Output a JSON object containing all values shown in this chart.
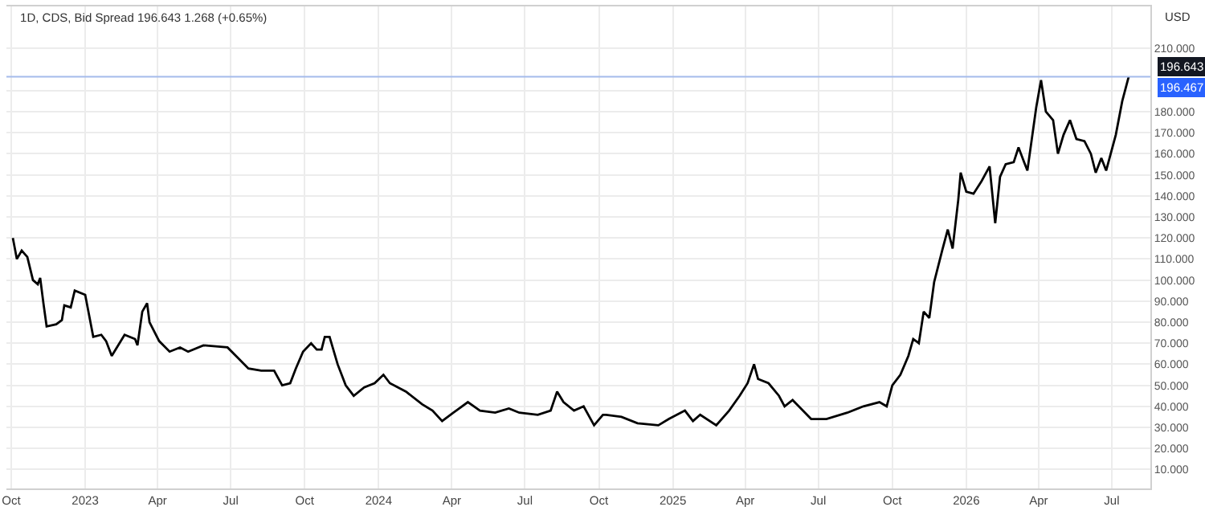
{
  "chart_data": {
    "type": "line",
    "title": "1D, CDS, Bid Spread 196.643 1.268 (+0.65%)",
    "ylabel": "USD",
    "x": [
      "2022-10-03",
      "2022-10-08",
      "2022-10-14",
      "2022-10-21",
      "2022-10-28",
      "2022-11-03",
      "2022-11-06",
      "2022-11-10",
      "2022-11-14",
      "2022-11-26",
      "2022-12-03",
      "2022-12-06",
      "2022-12-14",
      "2022-12-19",
      "2023-01-01",
      "2023-01-11",
      "2023-01-21",
      "2023-01-27",
      "2023-02-03",
      "2023-02-19",
      "2023-03-04",
      "2023-03-07",
      "2023-03-13",
      "2023-03-19",
      "2023-03-22",
      "2023-04-03",
      "2023-04-16",
      "2023-04-29",
      "2023-05-09",
      "2023-05-28",
      "2023-06-27",
      "2023-07-10",
      "2023-07-23",
      "2023-08-08",
      "2023-08-24",
      "2023-09-03",
      "2023-09-13",
      "2023-09-20",
      "2023-09-29",
      "2023-10-09",
      "2023-10-16",
      "2023-10-22",
      "2023-10-26",
      "2023-11-01",
      "2023-11-11",
      "2023-11-21",
      "2023-12-01",
      "2023-12-14",
      "2023-12-27",
      "2024-01-07",
      "2024-01-15",
      "2024-02-04",
      "2024-02-24",
      "2024-03-08",
      "2024-03-20",
      "2024-04-03",
      "2024-04-21",
      "2024-05-06",
      "2024-05-25",
      "2024-06-11",
      "2024-06-24",
      "2024-07-17",
      "2024-08-02",
      "2024-08-10",
      "2024-08-18",
      "2024-08-31",
      "2024-09-12",
      "2024-09-25",
      "2024-10-06",
      "2024-10-10",
      "2024-10-29",
      "2024-11-18",
      "2024-12-14",
      "2024-12-27",
      "2025-01-16",
      "2025-01-26",
      "2025-02-04",
      "2025-02-24",
      "2025-03-12",
      "2025-03-25",
      "2025-04-04",
      "2025-04-12",
      "2025-04-17",
      "2025-04-30",
      "2025-05-13",
      "2025-05-20",
      "2025-05-30",
      "2025-06-22",
      "2025-07-11",
      "2025-08-06",
      "2025-08-26",
      "2025-09-15",
      "2025-09-24",
      "2025-10-01",
      "2025-10-11",
      "2025-10-21",
      "2025-10-27",
      "2025-11-03",
      "2025-11-09",
      "2025-11-16",
      "2025-11-22",
      "2025-12-02",
      "2025-12-09",
      "2025-12-15",
      "2025-12-22",
      "2025-12-25",
      "2026-01-01",
      "2026-01-10",
      "2026-01-20",
      "2026-01-30",
      "2026-02-06",
      "2026-02-12",
      "2026-02-19",
      "2026-03-01",
      "2026-03-07",
      "2026-03-14",
      "2026-03-18",
      "2026-03-29",
      "2026-04-04",
      "2026-04-10",
      "2026-04-19",
      "2026-04-25",
      "2026-05-02",
      "2026-05-10",
      "2026-05-18",
      "2026-05-28",
      "2026-06-05",
      "2026-06-11",
      "2026-06-18",
      "2026-06-24",
      "2026-07-06",
      "2026-07-14",
      "2026-07-22"
    ],
    "series": [
      {
        "color": "#000000",
        "values": [
          120,
          110,
          114,
          111,
          100,
          98,
          101,
          89,
          78,
          79,
          81,
          88,
          87,
          95,
          93,
          73,
          74,
          71,
          64,
          74,
          72,
          69,
          85,
          89,
          80,
          71,
          66,
          68,
          66,
          69,
          68,
          63,
          58,
          57,
          57,
          50,
          51,
          58,
          66,
          70,
          67,
          67,
          73,
          73,
          60,
          50,
          45,
          49,
          51,
          55,
          51,
          47,
          41,
          38,
          33,
          37,
          42,
          38,
          37,
          39,
          37,
          36,
          38,
          47,
          42,
          38,
          40,
          31,
          36,
          36,
          35,
          32,
          31,
          34,
          38,
          33,
          36,
          31,
          38,
          45,
          51,
          60,
          53,
          51,
          45,
          40,
          43,
          34,
          34,
          37,
          40,
          42,
          40,
          50,
          55,
          64,
          72,
          70,
          85,
          82,
          99,
          114,
          124,
          115,
          138,
          151,
          142,
          141,
          147,
          154,
          127,
          149,
          155,
          156,
          163,
          156,
          152,
          182,
          195,
          180,
          176,
          160,
          169,
          176,
          167,
          166,
          160,
          151,
          158,
          152,
          169,
          185,
          196.6
        ]
      }
    ],
    "xlim": [
      "2022-09-25",
      "2026-08-18"
    ],
    "xticks": [
      {
        "value": "2022-10-01",
        "label": "Oct"
      },
      {
        "value": "2023-01-01",
        "label": "2023"
      },
      {
        "value": "2023-04-01",
        "label": "Apr"
      },
      {
        "value": "2023-07-01",
        "label": "Jul"
      },
      {
        "value": "2023-10-01",
        "label": "Oct"
      },
      {
        "value": "2024-01-01",
        "label": "2024"
      },
      {
        "value": "2024-04-01",
        "label": "Apr"
      },
      {
        "value": "2024-07-01",
        "label": "Jul"
      },
      {
        "value": "2024-10-01",
        "label": "Oct"
      },
      {
        "value": "2025-01-01",
        "label": "2025"
      },
      {
        "value": "2025-04-01",
        "label": "Apr"
      },
      {
        "value": "2025-07-01",
        "label": "Jul"
      },
      {
        "value": "2025-10-01",
        "label": "Oct"
      },
      {
        "value": "2026-01-01",
        "label": "2026"
      },
      {
        "value": "2026-04-01",
        "label": "Apr"
      },
      {
        "value": "2026-07-01",
        "label": "Jul"
      }
    ],
    "ylim": [
      1,
      230
    ],
    "yticks": [
      {
        "value": 10,
        "label": "10.000"
      },
      {
        "value": 20,
        "label": "20.000"
      },
      {
        "value": 30,
        "label": "30.000"
      },
      {
        "value": 40,
        "label": "40.000"
      },
      {
        "value": 50,
        "label": "50.000"
      },
      {
        "value": 60,
        "label": "60.000"
      },
      {
        "value": 70,
        "label": "70.000"
      },
      {
        "value": 80,
        "label": "80.000"
      },
      {
        "value": 90,
        "label": "90.000"
      },
      {
        "value": 100,
        "label": "100.000"
      },
      {
        "value": 110,
        "label": "110.000"
      },
      {
        "value": 120,
        "label": "120.000"
      },
      {
        "value": 130,
        "label": "130.000"
      },
      {
        "value": 140,
        "label": "140.000"
      },
      {
        "value": 150,
        "label": "150.000"
      },
      {
        "value": 160,
        "label": "160.000"
      },
      {
        "value": 170,
        "label": "170.000"
      },
      {
        "value": 180,
        "label": "180.000"
      },
      {
        "value": 190,
        "label": null
      },
      {
        "value": 210,
        "label": "210.000"
      }
    ],
    "ref_lines": [
      {
        "axis": "y",
        "value": 196.643,
        "label": "196.643",
        "color": "#a4bbeb"
      }
    ],
    "annotations": [
      "196.467"
    ],
    "grid": true,
    "marker": "none",
    "line_style": "solid"
  }
}
